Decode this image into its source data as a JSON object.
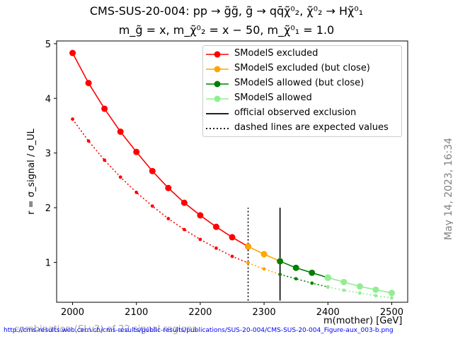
{
  "title_line1": "CMS-SUS-20-004: pp → g̃g̃, g̃ → qq̄χ̃⁰₂, χ̃⁰₂ → Hχ̃⁰₁",
  "title_line2": "m_g̃ = x, m_χ̃⁰₂ = x − 50, m_χ̃⁰₁ = 1.0",
  "side_date": "May 14, 2023, 16:34",
  "footer_url": "http://cms-results.web.cern.ch/cms-results/public-results/publications/SUS-20-004/CMS-SUS-20-004_Figure-aux_003-b.png",
  "footer_combination": "combination (SLv2) of 22 signal regions",
  "colors": {
    "excluded": "#ff0000",
    "excluded_close": "#ffa500",
    "allowed_close": "#008000",
    "allowed": "#90ee90",
    "official": "#000000"
  },
  "chart_data": {
    "type": "line",
    "xlabel": "m(mother) [GeV]",
    "ylabel": "r = σ_signal / σ_UL",
    "xlim": [
      1975,
      2525
    ],
    "ylim": [
      0.27,
      5.05
    ],
    "xticks": [
      2000,
      2100,
      2200,
      2300,
      2400,
      2500
    ],
    "yticks": [
      1,
      2,
      3,
      4,
      5
    ],
    "legend_position": "top-right",
    "series": [
      {
        "name": "SModelS excluded",
        "status": "excluded",
        "x": [
          2000,
          2025,
          2050,
          2075,
          2100,
          2125,
          2150,
          2175,
          2200,
          2225,
          2250,
          2275
        ],
        "observed": [
          4.83,
          4.28,
          3.81,
          3.39,
          3.02,
          2.67,
          2.36,
          2.09,
          1.86,
          1.65,
          1.46,
          1.29
        ],
        "expected": [
          3.62,
          3.22,
          2.87,
          2.56,
          2.28,
          2.03,
          1.8,
          1.6,
          1.42,
          1.26,
          1.11,
          0.99
        ]
      },
      {
        "name": "SModelS excluded (but close)",
        "status": "excluded_close",
        "x": [
          2275,
          2300,
          2325
        ],
        "observed": [
          1.29,
          1.15,
          1.02
        ],
        "expected": [
          0.99,
          0.88,
          0.78
        ]
      },
      {
        "name": "SModelS allowed (but close)",
        "status": "allowed_close",
        "x": [
          2325,
          2350,
          2375,
          2400
        ],
        "observed": [
          1.02,
          0.9,
          0.81,
          0.72
        ],
        "expected": [
          0.78,
          0.7,
          0.62,
          0.55
        ]
      },
      {
        "name": "SModelS allowed",
        "status": "allowed",
        "x": [
          2400,
          2425,
          2450,
          2475,
          2500
        ],
        "observed": [
          0.72,
          0.64,
          0.56,
          0.5,
          0.44
        ],
        "expected": [
          0.55,
          0.49,
          0.44,
          0.39,
          0.35
        ]
      }
    ],
    "official": [
      {
        "name": "official observed exclusion",
        "x": 2325,
        "y_range": [
          0.3,
          2.0
        ],
        "style": "solid"
      },
      {
        "name": "dashed lines are expected values",
        "x": 2275,
        "y_range": [
          0.3,
          2.0
        ],
        "style": "dotted"
      }
    ],
    "legend": [
      {
        "label": "SModelS excluded",
        "kind": "marker",
        "color_key": "excluded"
      },
      {
        "label": "SModelS excluded (but close)",
        "kind": "marker",
        "color_key": "excluded_close"
      },
      {
        "label": "SModelS allowed (but close)",
        "kind": "marker",
        "color_key": "allowed_close"
      },
      {
        "label": "SModelS allowed",
        "kind": "marker",
        "color_key": "allowed"
      },
      {
        "label": "official observed exclusion",
        "kind": "solid",
        "color_key": "official"
      },
      {
        "label": "dashed lines are expected values",
        "kind": "dotted",
        "color_key": "official"
      }
    ]
  }
}
